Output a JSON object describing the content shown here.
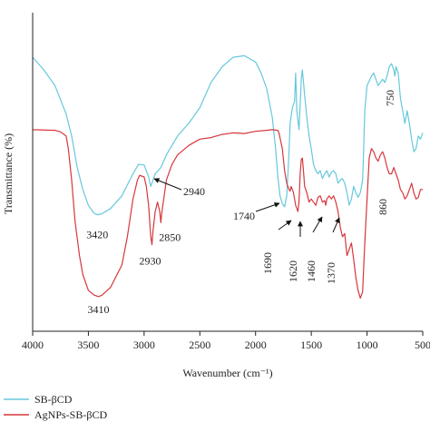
{
  "chart_data": {
    "type": "line",
    "title": "",
    "xlabel": "Wavenumber (cm⁻¹)",
    "ylabel": "Transmittance (%)",
    "xlim": [
      4000,
      500
    ],
    "x_reversed": true,
    "xticks": [
      4000,
      3500,
      3000,
      2500,
      2000,
      1500,
      1000,
      500
    ],
    "ylim": [
      0,
      100
    ],
    "y_ticks_shown": false,
    "grid": false,
    "legend_position": "bottom-left",
    "series": [
      {
        "name": "SB-βCD",
        "color": "#66c8dc",
        "points": [
          [
            4000,
            87
          ],
          [
            3900,
            83
          ],
          [
            3800,
            78
          ],
          [
            3700,
            69
          ],
          [
            3650,
            62
          ],
          [
            3600,
            52
          ],
          [
            3550,
            45
          ],
          [
            3500,
            40
          ],
          [
            3450,
            37.5
          ],
          [
            3420,
            37
          ],
          [
            3380,
            37.3
          ],
          [
            3300,
            39
          ],
          [
            3200,
            43
          ],
          [
            3100,
            50
          ],
          [
            3050,
            53
          ],
          [
            3000,
            52.8
          ],
          [
            2960,
            49
          ],
          [
            2940,
            46
          ],
          [
            2920,
            48
          ],
          [
            2900,
            50
          ],
          [
            2850,
            52
          ],
          [
            2800,
            56
          ],
          [
            2700,
            62
          ],
          [
            2600,
            66
          ],
          [
            2500,
            71
          ],
          [
            2400,
            79
          ],
          [
            2300,
            84
          ],
          [
            2200,
            87
          ],
          [
            2100,
            87.5
          ],
          [
            2000,
            85.5
          ],
          [
            1950,
            82
          ],
          [
            1900,
            77
          ],
          [
            1850,
            68
          ],
          [
            1820,
            58
          ],
          [
            1800,
            49
          ],
          [
            1780,
            43
          ],
          [
            1760,
            40.5
          ],
          [
            1740,
            39.5
          ],
          [
            1720,
            43
          ],
          [
            1700,
            57
          ],
          [
            1690,
            66
          ],
          [
            1670,
            71
          ],
          [
            1650,
            73
          ],
          [
            1640,
            82
          ],
          [
            1630,
            70
          ],
          [
            1610,
            64
          ],
          [
            1600,
            72
          ],
          [
            1590,
            80
          ],
          [
            1580,
            83
          ],
          [
            1560,
            75
          ],
          [
            1540,
            68
          ],
          [
            1520,
            62
          ],
          [
            1500,
            58
          ],
          [
            1480,
            53
          ],
          [
            1460,
            51
          ],
          [
            1440,
            50
          ],
          [
            1420,
            51
          ],
          [
            1400,
            48.5
          ],
          [
            1380,
            50
          ],
          [
            1360,
            51
          ],
          [
            1340,
            49
          ],
          [
            1320,
            50.5
          ],
          [
            1300,
            51
          ],
          [
            1280,
            50
          ],
          [
            1260,
            47
          ],
          [
            1240,
            48
          ],
          [
            1220,
            48.5
          ],
          [
            1200,
            47
          ],
          [
            1180,
            44
          ],
          [
            1160,
            40
          ],
          [
            1140,
            42
          ],
          [
            1120,
            46
          ],
          [
            1100,
            44
          ],
          [
            1080,
            42.5
          ],
          [
            1060,
            44
          ],
          [
            1040,
            48
          ],
          [
            1030,
            58
          ],
          [
            1020,
            70
          ],
          [
            1000,
            78
          ],
          [
            960,
            81
          ],
          [
            940,
            82
          ],
          [
            920,
            80
          ],
          [
            900,
            78
          ],
          [
            880,
            79
          ],
          [
            860,
            80
          ],
          [
            840,
            79
          ],
          [
            820,
            81
          ],
          [
            800,
            84
          ],
          [
            780,
            85
          ],
          [
            760,
            83
          ],
          [
            750,
            81
          ],
          [
            740,
            84
          ],
          [
            720,
            82
          ],
          [
            700,
            74
          ],
          [
            680,
            70
          ],
          [
            660,
            66
          ],
          [
            640,
            70
          ],
          [
            620,
            66
          ],
          [
            600,
            61
          ],
          [
            580,
            57
          ],
          [
            560,
            58
          ],
          [
            540,
            62
          ],
          [
            520,
            61
          ],
          [
            500,
            63
          ]
        ]
      },
      {
        "name": "AgNPs-SB-βCD",
        "color": "#d6373d",
        "points": [
          [
            4000,
            64
          ],
          [
            3800,
            63.8
          ],
          [
            3750,
            63.3
          ],
          [
            3700,
            62
          ],
          [
            3680,
            58
          ],
          [
            3650,
            48
          ],
          [
            3620,
            35
          ],
          [
            3580,
            24
          ],
          [
            3550,
            18
          ],
          [
            3500,
            13
          ],
          [
            3450,
            11.5
          ],
          [
            3410,
            11
          ],
          [
            3380,
            11.4
          ],
          [
            3300,
            14
          ],
          [
            3200,
            21
          ],
          [
            3150,
            30
          ],
          [
            3100,
            42
          ],
          [
            3060,
            48
          ],
          [
            3040,
            49.5
          ],
          [
            3000,
            49
          ],
          [
            2980,
            46
          ],
          [
            2960,
            40
          ],
          [
            2940,
            30
          ],
          [
            2930,
            27.5
          ],
          [
            2920,
            32
          ],
          [
            2900,
            38
          ],
          [
            2880,
            41
          ],
          [
            2860,
            38
          ],
          [
            2850,
            34.5
          ],
          [
            2840,
            38
          ],
          [
            2820,
            43
          ],
          [
            2800,
            48
          ],
          [
            2750,
            53
          ],
          [
            2700,
            56
          ],
          [
            2600,
            59
          ],
          [
            2500,
            61
          ],
          [
            2400,
            61.5
          ],
          [
            2300,
            62.5
          ],
          [
            2200,
            63
          ],
          [
            2100,
            62.8
          ],
          [
            2000,
            63.5
          ],
          [
            1900,
            63.8
          ],
          [
            1850,
            64
          ],
          [
            1800,
            63.8
          ],
          [
            1790,
            63
          ],
          [
            1760,
            58
          ],
          [
            1740,
            51
          ],
          [
            1720,
            47
          ],
          [
            1700,
            45
          ],
          [
            1690,
            44.5
          ],
          [
            1680,
            46
          ],
          [
            1660,
            44
          ],
          [
            1640,
            40
          ],
          [
            1620,
            38
          ],
          [
            1610,
            41
          ],
          [
            1600,
            50
          ],
          [
            1590,
            54.5
          ],
          [
            1580,
            55
          ],
          [
            1570,
            51
          ],
          [
            1560,
            46
          ],
          [
            1540,
            44
          ],
          [
            1520,
            41
          ],
          [
            1500,
            42
          ],
          [
            1480,
            41
          ],
          [
            1460,
            40
          ],
          [
            1440,
            42.5
          ],
          [
            1420,
            43
          ],
          [
            1400,
            41
          ],
          [
            1380,
            41.5
          ],
          [
            1370,
            40
          ],
          [
            1360,
            42
          ],
          [
            1340,
            43
          ],
          [
            1320,
            42
          ],
          [
            1300,
            43
          ],
          [
            1280,
            41
          ],
          [
            1260,
            38
          ],
          [
            1240,
            33
          ],
          [
            1220,
            30
          ],
          [
            1200,
            31
          ],
          [
            1180,
            24
          ],
          [
            1160,
            26
          ],
          [
            1140,
            28
          ],
          [
            1120,
            23
          ],
          [
            1100,
            17
          ],
          [
            1080,
            13
          ],
          [
            1060,
            10.5
          ],
          [
            1040,
            12.5
          ],
          [
            1020,
            28
          ],
          [
            1000,
            42
          ],
          [
            980,
            55
          ],
          [
            960,
            58
          ],
          [
            940,
            57
          ],
          [
            920,
            55
          ],
          [
            900,
            54
          ],
          [
            880,
            56
          ],
          [
            860,
            57
          ],
          [
            840,
            55
          ],
          [
            820,
            52
          ],
          [
            800,
            50
          ],
          [
            780,
            50
          ],
          [
            760,
            52
          ],
          [
            740,
            50
          ],
          [
            720,
            48
          ],
          [
            700,
            45
          ],
          [
            680,
            44
          ],
          [
            660,
            42
          ],
          [
            640,
            43
          ],
          [
            620,
            45
          ],
          [
            600,
            47
          ],
          [
            580,
            44
          ],
          [
            560,
            42
          ],
          [
            540,
            42.5
          ],
          [
            520,
            45
          ],
          [
            500,
            45
          ]
        ]
      }
    ],
    "annotations": [
      {
        "text": "3420",
        "x": 3420,
        "y": 37,
        "arrow": false
      },
      {
        "text": "3410",
        "x": 3410,
        "y": 11,
        "arrow": false
      },
      {
        "text": "2930",
        "x": 2930,
        "y": 27.5,
        "arrow": false
      },
      {
        "text": "2850",
        "x": 2850,
        "y": 34.5,
        "arrow": false
      },
      {
        "text": "2940",
        "x": 2940,
        "y": 46,
        "arrow": true
      },
      {
        "text": "1740",
        "x": 1740,
        "y": 39.5,
        "arrow": true
      },
      {
        "text": "1690",
        "x": 1690,
        "y": 44.5,
        "arrow": true,
        "rotated": true
      },
      {
        "text": "1620",
        "x": 1620,
        "y": 38,
        "arrow": true,
        "rotated": true
      },
      {
        "text": "1460",
        "x": 1460,
        "y": 40,
        "arrow": true,
        "rotated": true
      },
      {
        "text": "1370",
        "x": 1370,
        "y": 40,
        "arrow": true,
        "rotated": true
      },
      {
        "text": "860",
        "x": 860,
        "y": 57,
        "arrow": false,
        "rotated": true
      },
      {
        "text": "750",
        "x": 750,
        "y": 81,
        "arrow": false,
        "rotated": true
      }
    ]
  }
}
